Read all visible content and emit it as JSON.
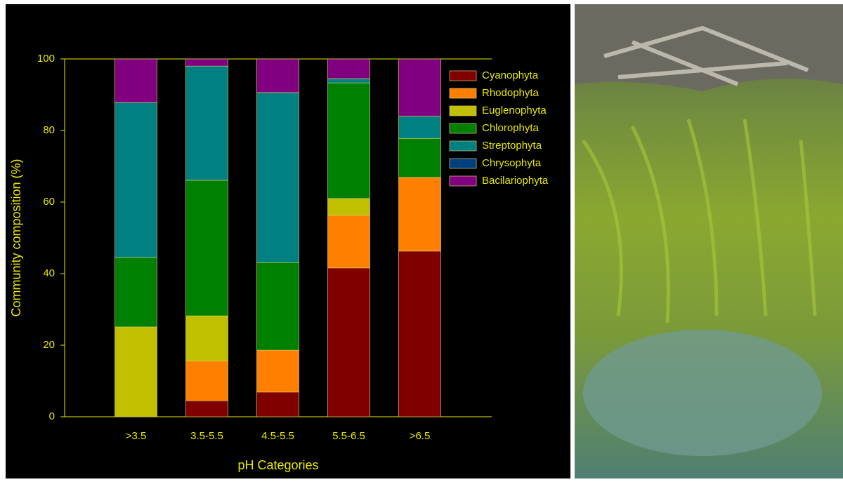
{
  "chart_data": {
    "type": "stacked-bar",
    "xlabel": "pH Categories",
    "ylabel": "Community composition (%)",
    "categories": [
      ">3.5",
      "3.5-5.5",
      "4.5-5.5",
      "5.5-6.5",
      ">6.5"
    ],
    "series": [
      {
        "name": "Cyanophyta",
        "color": "#800000",
        "values": [
          0,
          4.5,
          6.9,
          41.6,
          46.3
        ]
      },
      {
        "name": "Rhodophyta",
        "color": "#ff8000",
        "values": [
          0,
          11.1,
          11.7,
          14.7,
          20.6
        ]
      },
      {
        "name": "Euglenophyta",
        "color": "#c0c000",
        "values": [
          25.1,
          12.6,
          0,
          4.7,
          0
        ]
      },
      {
        "name": "Chlorophyta",
        "color": "#008000",
        "values": [
          19.4,
          37.9,
          24.5,
          32.3,
          10.9
        ]
      },
      {
        "name": "Streptophyta",
        "color": "#008080",
        "values": [
          43.3,
          31.9,
          47.5,
          1.2,
          6.2
        ]
      },
      {
        "name": "Chrysophyta",
        "color": "#00407f",
        "values": [
          0,
          0,
          0,
          0,
          0
        ]
      },
      {
        "name": "Bacilariophyta",
        "color": "#800080",
        "values": [
          12.2,
          2,
          9.4,
          5.5,
          16
        ]
      }
    ],
    "ylim": [
      0,
      100
    ],
    "yticks": [
      0,
      20,
      40,
      60,
      80,
      100
    ]
  }
}
